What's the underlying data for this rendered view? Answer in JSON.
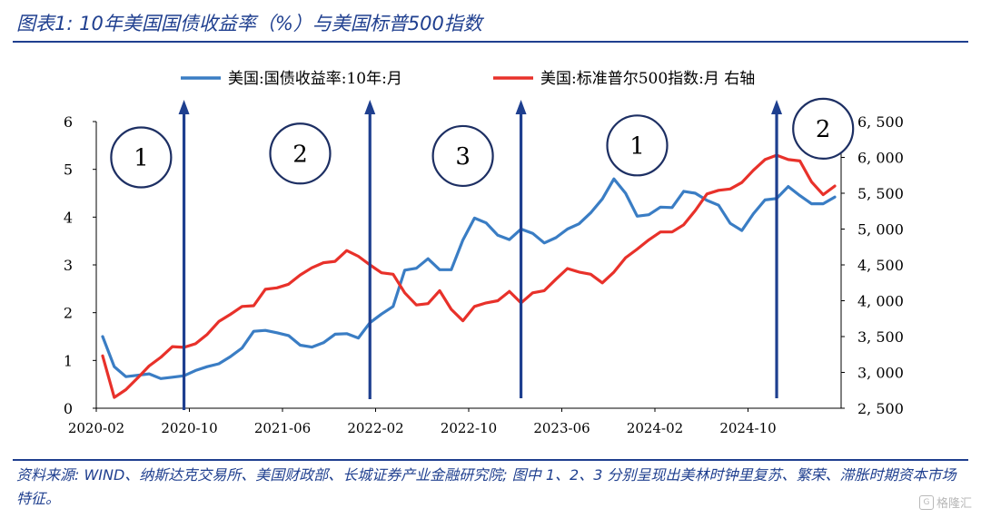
{
  "title": "图表1:  10年美国国债收益率（%）与美国标普500指数",
  "note": "资料来源:  WIND、纳斯达克交易所、美国财政部、长城证券产业金融研究院;  图中 1、2、3 分别呈现出美林时钟里复苏、繁荣、滞胀时期资本市场特征。",
  "watermark": "格隆汇",
  "colors": {
    "yield": "#3a7dc4",
    "spx": "#e8312a",
    "arrow": "#1e3f8f",
    "title": "#1f3f8f"
  },
  "chart_data": {
    "type": "line",
    "legend_position": "top",
    "x_ticks": [
      "2020-02",
      "2020-10",
      "2021-06",
      "2022-02",
      "2022-10",
      "2023-06",
      "2024-02",
      "2024-10"
    ],
    "y_left": {
      "ticks": [
        "0",
        "1",
        "2",
        "3",
        "4",
        "5",
        "6"
      ],
      "ylim": [
        0,
        6
      ]
    },
    "y_right": {
      "ticks": [
        "2, 500",
        "3, 000",
        "3, 500",
        "4, 000",
        "4, 500",
        "5, 000",
        "5, 500",
        "6, 000",
        "6, 500"
      ],
      "ylim": [
        2500,
        6500
      ]
    },
    "series": [
      {
        "name": "美国:国债收益率:10年:月",
        "axis": "left",
        "values": [
          1.5,
          0.87,
          0.66,
          0.69,
          0.72,
          0.62,
          0.65,
          0.68,
          0.79,
          0.87,
          0.93,
          1.08,
          1.26,
          1.61,
          1.63,
          1.58,
          1.52,
          1.32,
          1.28,
          1.37,
          1.55,
          1.56,
          1.47,
          1.79,
          1.97,
          2.13,
          2.89,
          2.93,
          3.13,
          2.9,
          2.9,
          3.52,
          3.98,
          3.88,
          3.62,
          3.53,
          3.75,
          3.66,
          3.46,
          3.57,
          3.75,
          3.86,
          4.09,
          4.38,
          4.8,
          4.5,
          4.02,
          4.05,
          4.21,
          4.2,
          4.54,
          4.5,
          4.35,
          4.25,
          3.87,
          3.72,
          4.07,
          4.36,
          4.39,
          4.64,
          4.45,
          4.28,
          4.28,
          4.42
        ]
      },
      {
        "name": "美国:标准普尔500指数:月  右轴",
        "axis": "right",
        "values": [
          3230,
          2650,
          2760,
          2920,
          3090,
          3210,
          3360,
          3350,
          3400,
          3530,
          3710,
          3810,
          3920,
          3930,
          4160,
          4180,
          4230,
          4360,
          4460,
          4530,
          4550,
          4700,
          4620,
          4500,
          4390,
          4370,
          4110,
          3940,
          3960,
          4140,
          3880,
          3720,
          3920,
          3970,
          4000,
          4130,
          3970,
          4110,
          4140,
          4300,
          4450,
          4400,
          4370,
          4250,
          4400,
          4600,
          4720,
          4850,
          4960,
          4960,
          5060,
          5260,
          5490,
          5540,
          5560,
          5650,
          5820,
          5970,
          6030,
          5970,
          5950,
          5660,
          5480,
          5600
        ]
      }
    ],
    "annotations": [
      {
        "label": "1",
        "x_index": 3,
        "y_left": 5.25
      },
      {
        "label": "2",
        "x_index": 17,
        "y_left": 5.33
      },
      {
        "label": "3",
        "x_index": 31,
        "y_left": 5.28
      },
      {
        "label": "1",
        "x_index": 46,
        "y_left": 5.5
      },
      {
        "label": "2",
        "x_index": 62,
        "y_left": 5.85
      }
    ],
    "arrows_at_x_index": [
      7,
      23,
      36,
      58
    ]
  }
}
